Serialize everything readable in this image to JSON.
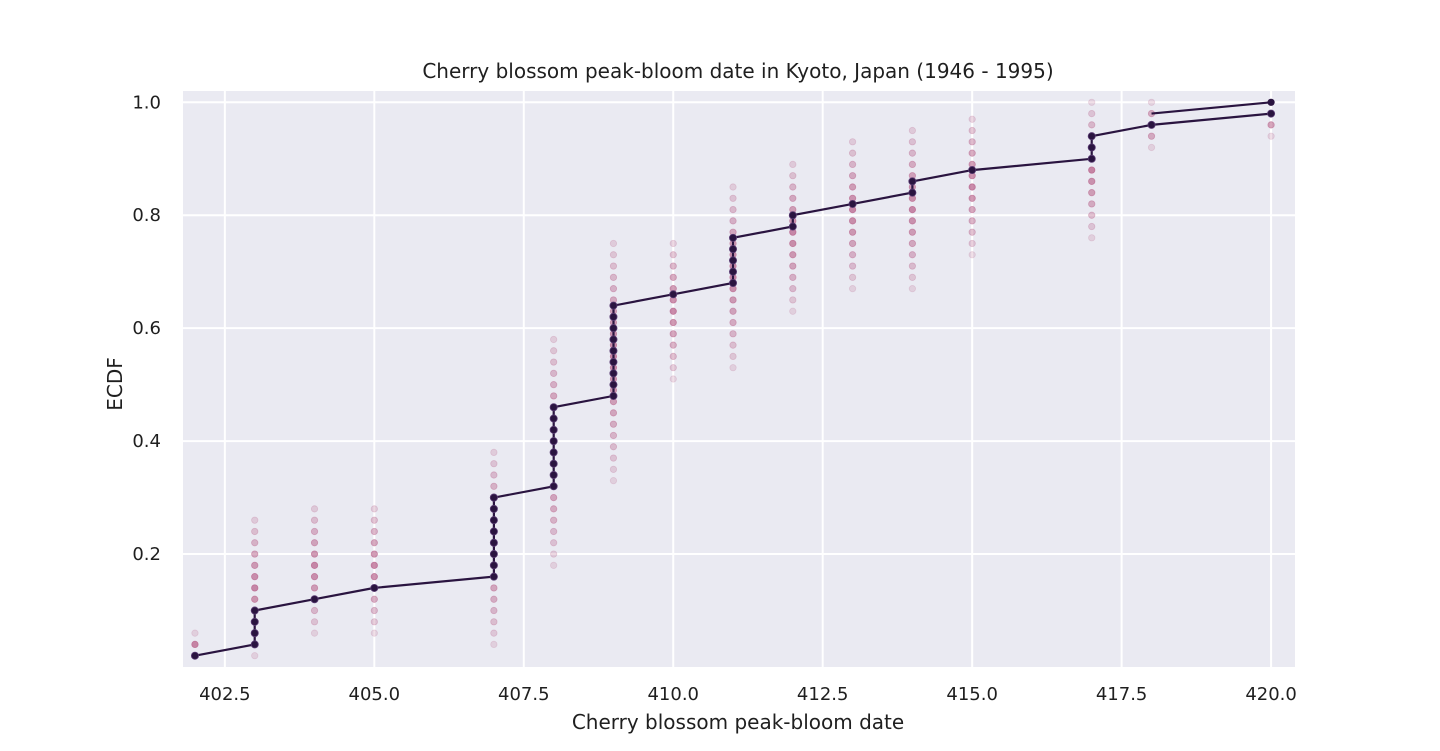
{
  "chart_data": {
    "type": "scatter",
    "title": "Cherry blossom peak-bloom date in Kyoto, Japan (1946 - 1995)",
    "xlabel": "Cherry blossom peak-bloom date",
    "ylabel": "ECDF",
    "xlim": [
      401.8,
      420.4
    ],
    "ylim": [
      0.0,
      1.02
    ],
    "xticks": [
      402.5,
      405.0,
      407.5,
      410.0,
      412.5,
      415.0,
      417.5,
      420.0
    ],
    "xtick_labels": [
      "402.5",
      "405.0",
      "407.5",
      "410.0",
      "412.5",
      "415.0",
      "417.5",
      "420.0"
    ],
    "yticks": [
      0.2,
      0.4,
      0.6,
      0.8,
      1.0
    ],
    "ytick_labels": [
      "0.2",
      "0.4",
      "0.6",
      "0.8",
      "1.0"
    ],
    "grid": true,
    "colors": {
      "background": "#eaeaf2",
      "grid": "#ffffff",
      "ecdf_line": "#2a1440",
      "ecdf_marker": "#2a1440",
      "bootstrap_marker": "#b8628a"
    },
    "series": [
      {
        "kind": "ecdf",
        "x": [
          402,
          403,
          403,
          403,
          403,
          404,
          405,
          407,
          407,
          407,
          407,
          407,
          407,
          407,
          407,
          407,
          408,
          408,
          408,
          408,
          408,
          408,
          408,
          408,
          409,
          409,
          409,
          409,
          409,
          409,
          409,
          409,
          409,
          410,
          411,
          411,
          411,
          411,
          411,
          412,
          412,
          413,
          414,
          414,
          415,
          417,
          417,
          417,
          418,
          420
        ],
        "y": [
          0.02,
          0.04,
          0.06,
          0.08,
          0.1,
          0.12,
          0.14,
          0.16,
          0.18,
          0.2,
          0.22,
          0.24,
          0.26,
          0.28,
          0.3,
          0.3,
          0.32,
          0.34,
          0.36,
          0.38,
          0.4,
          0.42,
          0.44,
          0.46,
          0.48,
          0.5,
          0.52,
          0.54,
          0.56,
          0.58,
          0.6,
          0.62,
          0.64,
          0.66,
          0.68,
          0.7,
          0.72,
          0.74,
          0.76,
          0.78,
          0.8,
          0.82,
          0.84,
          0.86,
          0.88,
          0.9,
          0.92,
          0.94,
          0.96,
          0.98
        ]
      }
    ],
    "bootstrap_columns": [
      {
        "x": 402,
        "ymin": 0.02,
        "ymax": 0.06
      },
      {
        "x": 403,
        "ymin": 0.02,
        "ymax": 0.27
      },
      {
        "x": 404,
        "ymin": 0.06,
        "ymax": 0.29
      },
      {
        "x": 405,
        "ymin": 0.06,
        "ymax": 0.29
      },
      {
        "x": 407,
        "ymin": 0.04,
        "ymax": 0.39
      },
      {
        "x": 408,
        "ymin": 0.18,
        "ymax": 0.59
      },
      {
        "x": 409,
        "ymin": 0.33,
        "ymax": 0.76
      },
      {
        "x": 410,
        "ymin": 0.51,
        "ymax": 0.76
      },
      {
        "x": 411,
        "ymin": 0.53,
        "ymax": 0.86
      },
      {
        "x": 412,
        "ymin": 0.63,
        "ymax": 0.9
      },
      {
        "x": 413,
        "ymin": 0.67,
        "ymax": 0.94
      },
      {
        "x": 414,
        "ymin": 0.67,
        "ymax": 0.96
      },
      {
        "x": 415,
        "ymin": 0.73,
        "ymax": 0.98
      },
      {
        "x": 417,
        "ymin": 0.76,
        "ymax": 1.0
      },
      {
        "x": 418,
        "ymin": 0.92,
        "ymax": 1.0
      },
      {
        "x": 420,
        "ymin": 0.94,
        "ymax": 1.0
      }
    ]
  }
}
